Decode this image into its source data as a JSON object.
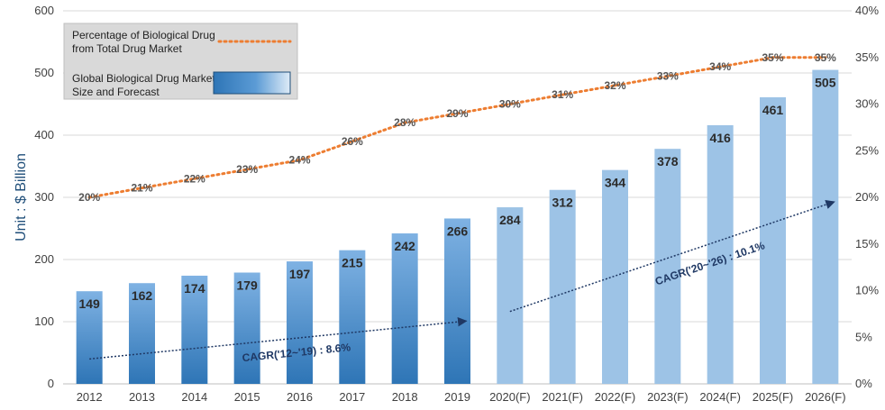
{
  "chart_data": {
    "type": "bar",
    "categories": [
      "2012",
      "2013",
      "2014",
      "2015",
      "2016",
      "2017",
      "2018",
      "2019",
      "2020(F)",
      "2021(F)",
      "2022(F)",
      "2023(F)",
      "2024(F)",
      "2025(F)",
      "2026(F)"
    ],
    "series": [
      {
        "name": "Global Biological Drug Market Size and Forecast",
        "type": "bar",
        "axis": "left",
        "values": [
          149,
          162,
          174,
          179,
          197,
          215,
          242,
          266,
          284,
          312,
          344,
          378,
          416,
          461,
          505
        ],
        "value_labels": [
          "149",
          "162",
          "174",
          "179",
          "197",
          "215",
          "242",
          "266",
          "284",
          "312",
          "344",
          "378",
          "416",
          "461",
          "505"
        ]
      },
      {
        "name": "Percentage of Biological Drug from Total Drug Market",
        "type": "line",
        "axis": "right",
        "values": [
          20,
          21,
          22,
          23,
          24,
          26,
          28,
          29,
          30,
          31,
          32,
          33,
          34,
          35,
          35
        ],
        "value_labels": [
          "20%",
          "21%",
          "22%",
          "23%",
          "24%",
          "26%",
          "28%",
          "29%",
          "30%",
          "31%",
          "32%",
          "33%",
          "34%",
          "35%",
          "35%"
        ]
      }
    ],
    "ylabel": "Unit : $ Billion",
    "ylim": [
      0,
      600
    ],
    "y_ticks": [
      "0",
      "100",
      "200",
      "300",
      "400",
      "500",
      "600"
    ],
    "y2lim": [
      0,
      40
    ],
    "y2_ticks": [
      "0%",
      "5%",
      "10%",
      "15%",
      "20%",
      "25%",
      "30%",
      "35%",
      "40%"
    ],
    "grid": true,
    "legend_position": "top-left",
    "annotations": [
      {
        "text": "CAGR('12~'19) : 8.6%",
        "from_category": "2012",
        "to_category": "2019"
      },
      {
        "text": "CAGR('20~'26) : 10.1%",
        "from_category": "2020(F)",
        "to_category": "2026(F)"
      }
    ],
    "colors": {
      "actual_bar_dark": "#2e75b6",
      "actual_bar_light": "#7fb2e3",
      "forecast_bar": "#9dc3e6",
      "line": "#ed7d31",
      "arrow": "#1f3864",
      "grid": "#d9d9d9",
      "legend_bg": "#d9d9d9"
    }
  }
}
